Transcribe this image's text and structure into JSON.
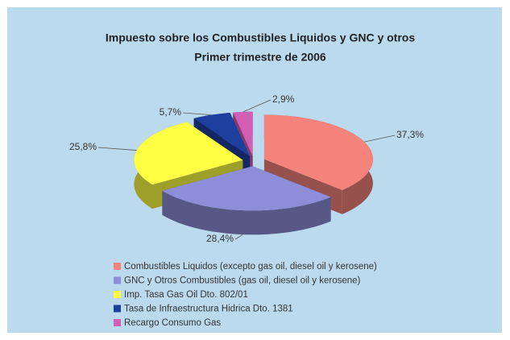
{
  "chart_data": {
    "type": "pie",
    "title": "Impuesto sobre los Combustibles Liquidos y GNC y otros",
    "subtitle": "Primer trimestre de 2006",
    "categories": [
      "Combustibles Liquidos (excepto gas oil, diesel oil y kerosene)",
      "GNC y Otros Combustibles (gas oil, diesel oil y kerosene)",
      "Imp. Tasa Gas Oil Dto. 802/01",
      "Tasa de Infraestructura Hidrica Dto. 1381",
      "Recargo Consumo Gas"
    ],
    "values": [
      37.3,
      28.4,
      25.8,
      5.7,
      2.9
    ],
    "value_labels": [
      "37,3%",
      "28,4%",
      "25,8%",
      "5,7%",
      "2,9%"
    ],
    "colors": [
      "#f4837c",
      "#8e8ed8",
      "#ffff44",
      "#1f3f9f",
      "#d25fb4"
    ]
  }
}
